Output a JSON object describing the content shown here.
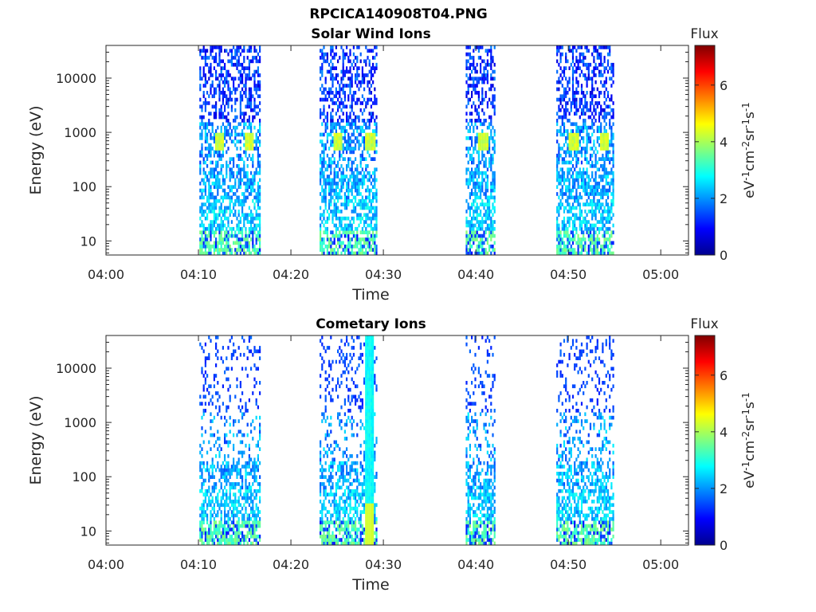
{
  "figure_title": "RPCICA140908T04.PNG",
  "colorbar": {
    "title": "Flux",
    "unit_parts": [
      "eV",
      "-1",
      "cm",
      "-2",
      "sr",
      "-1",
      "s",
      "-1"
    ],
    "range": [
      0,
      7.4
    ],
    "ticks": [
      {
        "value": 0,
        "label": "0"
      },
      {
        "value": 2,
        "label": "2"
      },
      {
        "value": 4,
        "label": "4"
      },
      {
        "value": 6,
        "label": "6"
      }
    ]
  },
  "chart_data": [
    {
      "type": "heatmap",
      "title": "Solar Wind Ions",
      "xlabel": "Time",
      "ylabel": "Energy (eV)",
      "yscale": "log",
      "xlim_minutes": [
        0,
        63
      ],
      "ylim": [
        5.5,
        40000
      ],
      "x_ticks": [
        {
          "value": 0,
          "label": "04:00"
        },
        {
          "value": 10,
          "label": "04:10"
        },
        {
          "value": 20,
          "label": "04:20"
        },
        {
          "value": 30,
          "label": "04:30"
        },
        {
          "value": 40,
          "label": "04:40"
        },
        {
          "value": 50,
          "label": "04:50"
        },
        {
          "value": 60,
          "label": "05:00"
        }
      ],
      "y_ticks": [
        {
          "value": 10,
          "label": "10"
        },
        {
          "value": 100,
          "label": "100"
        },
        {
          "value": 1000,
          "label": "1000"
        },
        {
          "value": 10000,
          "label": "10000"
        }
      ],
      "intervals": [
        {
          "start": 10.1,
          "end": 16.6,
          "peaks": [
            12.2,
            15.4
          ]
        },
        {
          "start": 23.1,
          "end": 29.3,
          "peaks": [
            25.0,
            28.5
          ]
        },
        {
          "start": 38.9,
          "end": 42.1,
          "peaks": [
            40.7
          ]
        },
        {
          "start": 48.7,
          "end": 54.9,
          "peaks": [
            50.5,
            53.8
          ]
        }
      ]
    },
    {
      "type": "heatmap",
      "title": "Cometary Ions",
      "xlabel": "Time",
      "ylabel": "Energy (eV)",
      "yscale": "log",
      "xlim_minutes": [
        0,
        63
      ],
      "ylim": [
        5.5,
        40000
      ],
      "x_ticks": [
        {
          "value": 0,
          "label": "04:00"
        },
        {
          "value": 10,
          "label": "04:10"
        },
        {
          "value": 20,
          "label": "04:20"
        },
        {
          "value": 30,
          "label": "04:30"
        },
        {
          "value": 40,
          "label": "04:40"
        },
        {
          "value": 50,
          "label": "04:50"
        },
        {
          "value": 60,
          "label": "05:00"
        }
      ],
      "y_ticks": [
        {
          "value": 10,
          "label": "10"
        },
        {
          "value": 100,
          "label": "100"
        },
        {
          "value": 1000,
          "label": "1000"
        },
        {
          "value": 10000,
          "label": "10000"
        }
      ],
      "intervals": [
        {
          "start": 10.1,
          "end": 16.6,
          "peaks": []
        },
        {
          "start": 23.1,
          "end": 29.3,
          "peaks": [
            28.4
          ]
        },
        {
          "start": 38.9,
          "end": 42.1,
          "peaks": []
        },
        {
          "start": 48.7,
          "end": 54.9,
          "peaks": []
        }
      ]
    }
  ]
}
